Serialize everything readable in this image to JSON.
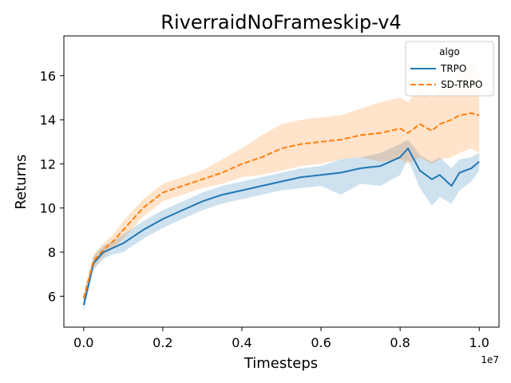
{
  "chart_data": {
    "type": "line",
    "title": "RiverraidNoFrameskip-v4",
    "xlabel": "Timesteps",
    "ylabel": "Returns",
    "x_offset_label": "1e7",
    "xlim": [
      -0.05,
      1.05
    ],
    "ylim": [
      4.6,
      17.8
    ],
    "x_ticks": [
      0.0,
      0.2,
      0.4,
      0.6,
      0.8,
      1.0
    ],
    "x_tick_labels": [
      "0.0",
      "0.2",
      "0.4",
      "0.6",
      "0.8",
      "1.0"
    ],
    "y_ticks": [
      6,
      8,
      10,
      12,
      14,
      16
    ],
    "y_tick_labels": [
      "6",
      "8",
      "10",
      "12",
      "14",
      "16"
    ],
    "legend": {
      "title": "algo",
      "placement": "top-right"
    },
    "x": [
      0.0,
      0.025,
      0.05,
      0.075,
      0.1,
      0.15,
      0.2,
      0.25,
      0.3,
      0.35,
      0.4,
      0.45,
      0.5,
      0.55,
      0.6,
      0.65,
      0.7,
      0.75,
      0.8,
      0.82,
      0.85,
      0.88,
      0.9,
      0.93,
      0.95,
      0.98,
      1.0
    ],
    "series": [
      {
        "name": "TRPO",
        "color": "#1f77b4",
        "dash": "solid",
        "values": [
          5.6,
          7.5,
          8.0,
          8.2,
          8.4,
          9.0,
          9.5,
          9.9,
          10.3,
          10.6,
          10.8,
          11.0,
          11.2,
          11.4,
          11.5,
          11.6,
          11.8,
          11.9,
          12.3,
          12.7,
          11.7,
          11.3,
          11.5,
          11.0,
          11.6,
          11.8,
          12.1
        ],
        "lower": [
          5.3,
          7.2,
          7.7,
          7.9,
          8.0,
          8.6,
          9.1,
          9.5,
          9.9,
          10.2,
          10.4,
          10.6,
          10.8,
          10.9,
          11.0,
          10.6,
          11.1,
          11.0,
          11.5,
          12.2,
          10.9,
          10.1,
          10.5,
          10.2,
          10.8,
          11.2,
          11.7
        ],
        "upper": [
          5.9,
          7.8,
          8.3,
          8.5,
          8.8,
          9.4,
          9.9,
          10.3,
          10.7,
          11.0,
          11.2,
          11.4,
          11.6,
          11.8,
          11.9,
          12.2,
          12.3,
          12.5,
          12.9,
          13.1,
          12.4,
          12.1,
          12.3,
          11.8,
          12.2,
          12.3,
          12.5
        ]
      },
      {
        "name": "SD-TRPO",
        "color": "#ff7f0e",
        "dash": "dashed",
        "values": [
          5.9,
          7.6,
          8.1,
          8.5,
          9.0,
          10.0,
          10.7,
          11.0,
          11.3,
          11.6,
          12.0,
          12.3,
          12.7,
          12.9,
          13.0,
          13.1,
          13.3,
          13.4,
          13.6,
          13.4,
          13.8,
          13.5,
          13.8,
          14.0,
          14.2,
          14.3,
          14.2
        ],
        "lower": [
          5.6,
          7.3,
          7.8,
          8.2,
          8.6,
          9.6,
          10.3,
          10.6,
          10.9,
          11.1,
          11.4,
          11.5,
          11.7,
          11.9,
          12.0,
          12.2,
          12.3,
          12.1,
          12.2,
          12.0,
          12.3,
          12.0,
          12.2,
          12.3,
          12.5,
          12.7,
          12.5
        ],
        "upper": [
          6.2,
          7.9,
          8.4,
          8.8,
          9.4,
          10.4,
          11.1,
          11.4,
          11.7,
          12.2,
          12.7,
          13.3,
          13.8,
          14.0,
          14.1,
          14.2,
          14.5,
          14.8,
          15.0,
          14.8,
          15.5,
          15.0,
          15.4,
          15.7,
          16.2,
          16.5,
          16.0
        ]
      }
    ]
  }
}
